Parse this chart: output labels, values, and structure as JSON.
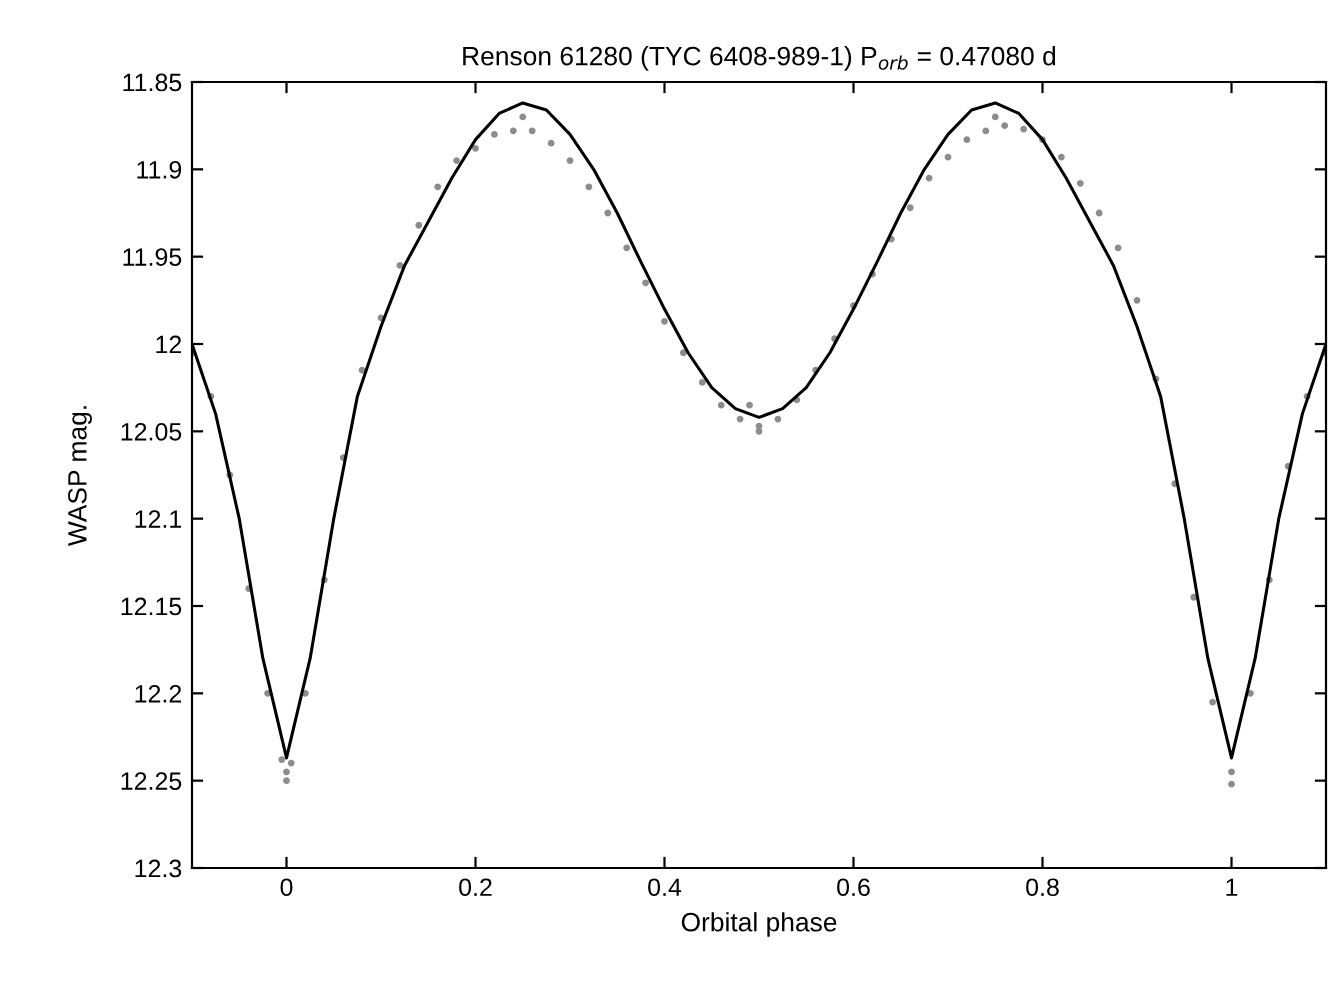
{
  "chart_data": {
    "type": "scatter",
    "title": "Renson 61280 (TYC 6408-989-1) P$_{orb}$ = 0.47080 d",
    "xlabel": "Orbital phase",
    "ylabel": "WASP mag.",
    "xlim": [
      -0.1,
      1.1
    ],
    "xticks": [
      0,
      0.2,
      0.4,
      0.6,
      0.8,
      1
    ],
    "ylim": [
      12.3,
      11.85
    ],
    "yticks": [
      11.85,
      11.9,
      11.95,
      12,
      12.05,
      12.1,
      12.15,
      12.2,
      12.25,
      12.3
    ],
    "grid": false,
    "legend": false,
    "series": [
      {
        "color": "#8c8c8c",
        "marker": "circle",
        "x": [
          -0.1,
          -0.08,
          -0.06,
          -0.04,
          -0.02,
          0,
          0.02,
          0.04,
          0.06,
          0.08,
          0.1,
          0.12,
          0.14,
          0.16,
          0.18,
          0.2,
          0.22,
          0.24,
          0.26,
          0.28,
          0.3,
          0.32,
          0.34,
          0.36,
          0.38,
          0.4,
          0.42,
          0.44,
          0.46,
          0.48,
          0.5,
          0.52,
          0.54,
          0.56,
          0.58,
          0.6,
          0.62,
          0.64,
          0.66,
          0.68,
          0.7,
          0.72,
          0.74,
          0.76,
          0.78,
          0.8,
          0.82,
          0.84,
          0.86,
          0.88,
          0.9,
          0.92,
          0.94,
          0.96,
          0.98,
          1,
          1.02,
          1.04,
          1.06,
          1.08,
          1.1,
          0,
          -0.005,
          0.005,
          0.5,
          0.49,
          1,
          0.25,
          0.75
        ],
        "values": [
          12.005,
          12.03,
          12.075,
          12.14,
          12.2,
          12.245,
          12.2,
          12.135,
          12.065,
          12.015,
          11.985,
          11.955,
          11.932,
          11.91,
          11.895,
          11.888,
          11.88,
          11.878,
          11.878,
          11.885,
          11.895,
          11.91,
          11.925,
          11.945,
          11.965,
          11.987,
          12.005,
          12.022,
          12.035,
          12.043,
          12.047,
          12.043,
          12.032,
          12.015,
          11.997,
          11.978,
          11.96,
          11.94,
          11.922,
          11.905,
          11.893,
          11.883,
          11.878,
          11.875,
          11.877,
          11.883,
          11.893,
          11.908,
          11.925,
          11.945,
          11.975,
          12.02,
          12.08,
          12.145,
          12.205,
          12.245,
          12.2,
          12.135,
          12.07,
          12.03,
          12.005,
          12.25,
          12.238,
          12.24,
          12.05,
          12.035,
          12.252,
          11.87,
          11.87
        ]
      },
      {
        "type": "line",
        "color": "#000000",
        "marker": "none",
        "line_style": "solid",
        "x": [
          -0.1,
          -0.075,
          -0.05,
          -0.025,
          0,
          0.025,
          0.05,
          0.075,
          0.1,
          0.125,
          0.15,
          0.175,
          0.2,
          0.225,
          0.25,
          0.275,
          0.3,
          0.325,
          0.35,
          0.375,
          0.4,
          0.425,
          0.45,
          0.475,
          0.5,
          0.525,
          0.55,
          0.575,
          0.6,
          0.625,
          0.65,
          0.675,
          0.7,
          0.725,
          0.75,
          0.775,
          0.8,
          0.825,
          0.85,
          0.875,
          0.9,
          0.925,
          0.95,
          0.975,
          1,
          1.025,
          1.05,
          1.075,
          1.1
        ],
        "values": [
          12.0,
          12.04,
          12.1,
          12.18,
          12.237,
          12.18,
          12.1,
          12.03,
          11.99,
          11.955,
          11.93,
          11.905,
          11.883,
          11.868,
          11.862,
          11.866,
          11.88,
          11.9,
          11.925,
          11.953,
          11.98,
          12.005,
          12.025,
          12.037,
          12.042,
          12.037,
          12.025,
          12.005,
          11.98,
          11.953,
          11.925,
          11.9,
          11.88,
          11.866,
          11.862,
          11.868,
          11.883,
          11.905,
          11.93,
          11.955,
          11.99,
          12.03,
          12.1,
          12.18,
          12.237,
          12.18,
          12.1,
          12.04,
          12.0
        ]
      }
    ]
  }
}
